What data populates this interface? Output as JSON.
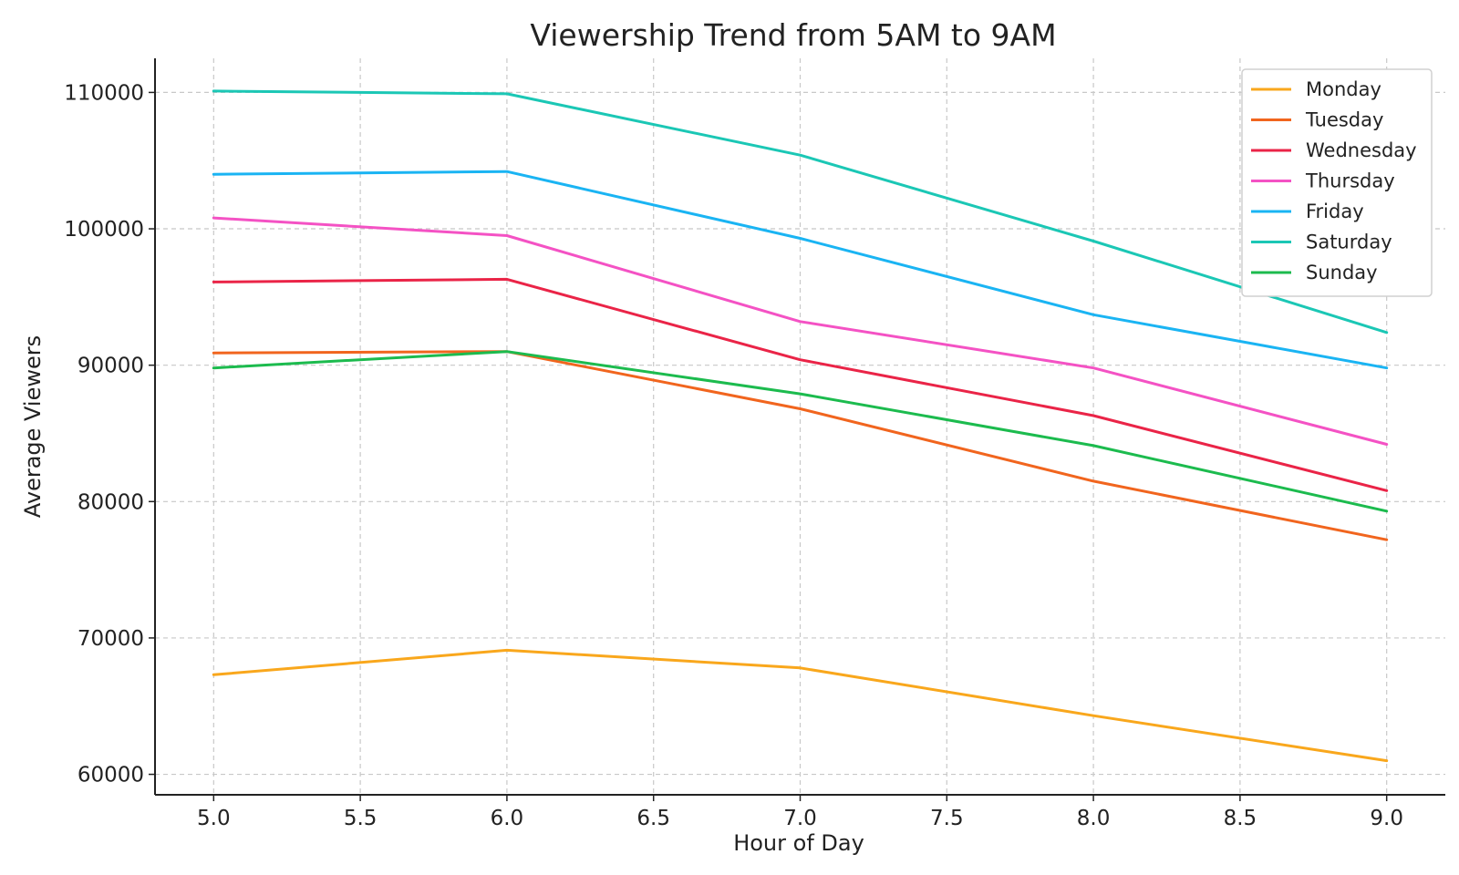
{
  "chart_data": {
    "type": "line",
    "title": "Viewership Trend from 5AM to 9AM",
    "xlabel": "Hour of Day",
    "ylabel": "Average Viewers",
    "x": [
      5,
      6,
      7,
      8,
      9
    ],
    "xlim": [
      4.8,
      9.2
    ],
    "ylim": [
      58500,
      112500
    ],
    "xticks": [
      5.0,
      5.5,
      6.0,
      6.5,
      7.0,
      7.5,
      8.0,
      8.5,
      9.0
    ],
    "xtick_labels": [
      "5.0",
      "5.5",
      "6.0",
      "6.5",
      "7.0",
      "7.5",
      "8.0",
      "8.5",
      "9.0"
    ],
    "yticks": [
      60000,
      70000,
      80000,
      90000,
      100000,
      110000
    ],
    "ytick_labels": [
      "60000",
      "70000",
      "80000",
      "90000",
      "100000",
      "110000"
    ],
    "grid": true,
    "legend_position": "top-right",
    "series": [
      {
        "name": "Monday",
        "color": "#f9a71c",
        "values": [
          67300,
          69100,
          67800,
          64300,
          61000
        ]
      },
      {
        "name": "Tuesday",
        "color": "#f1651e",
        "values": [
          90900,
          91000,
          86800,
          81500,
          77200
        ]
      },
      {
        "name": "Wednesday",
        "color": "#ea2447",
        "values": [
          96100,
          96300,
          90400,
          86300,
          80800
        ]
      },
      {
        "name": "Thursday",
        "color": "#f452c4",
        "values": [
          100800,
          99500,
          93200,
          89800,
          84200
        ]
      },
      {
        "name": "Friday",
        "color": "#1ab4f3",
        "values": [
          104000,
          104200,
          99300,
          93700,
          89800
        ]
      },
      {
        "name": "Saturday",
        "color": "#1bc7b5",
        "values": [
          110100,
          109900,
          105400,
          99100,
          92400
        ]
      },
      {
        "name": "Sunday",
        "color": "#1cbb4e",
        "values": [
          89800,
          91000,
          87900,
          84100,
          79300
        ]
      }
    ]
  }
}
